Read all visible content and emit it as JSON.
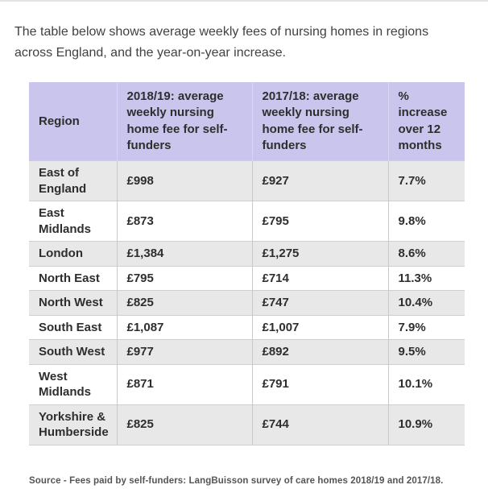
{
  "intro": "The table below shows average weekly fees of nursing homes in regions across England, and the year-on-year increase.",
  "colors": {
    "header_bg": "#c9c5ec",
    "row_alt_bg": "#e8e8e8"
  },
  "chart_data": {
    "type": "table",
    "columns": [
      "Region",
      "2018/19: average weekly nursing home fee for self-funders",
      "2017/18: average weekly nursing home fee for self-funders",
      "% increase over 12 months"
    ],
    "rows": [
      [
        "East of England",
        "£998",
        "£927",
        "7.7%"
      ],
      [
        "East Midlands",
        "£873",
        "£795",
        "9.8%"
      ],
      [
        "London",
        "£1,384",
        "£1,275",
        "8.6%"
      ],
      [
        "North East",
        "£795",
        "£714",
        "11.3%"
      ],
      [
        "North West",
        "£825",
        "£747",
        "10.4%"
      ],
      [
        "South East",
        "£1,087",
        "£1,007",
        "7.9%"
      ],
      [
        "South West",
        "£977",
        "£892",
        "9.5%"
      ],
      [
        "West Midlands",
        "£871",
        "£791",
        "10.1%"
      ],
      [
        "Yorkshire & Humberside",
        "£825",
        "£744",
        "10.9%"
      ]
    ],
    "source": "Source - Fees paid by self-funders: LangBuisson survey of care homes 2018/19 and 2017/18."
  }
}
